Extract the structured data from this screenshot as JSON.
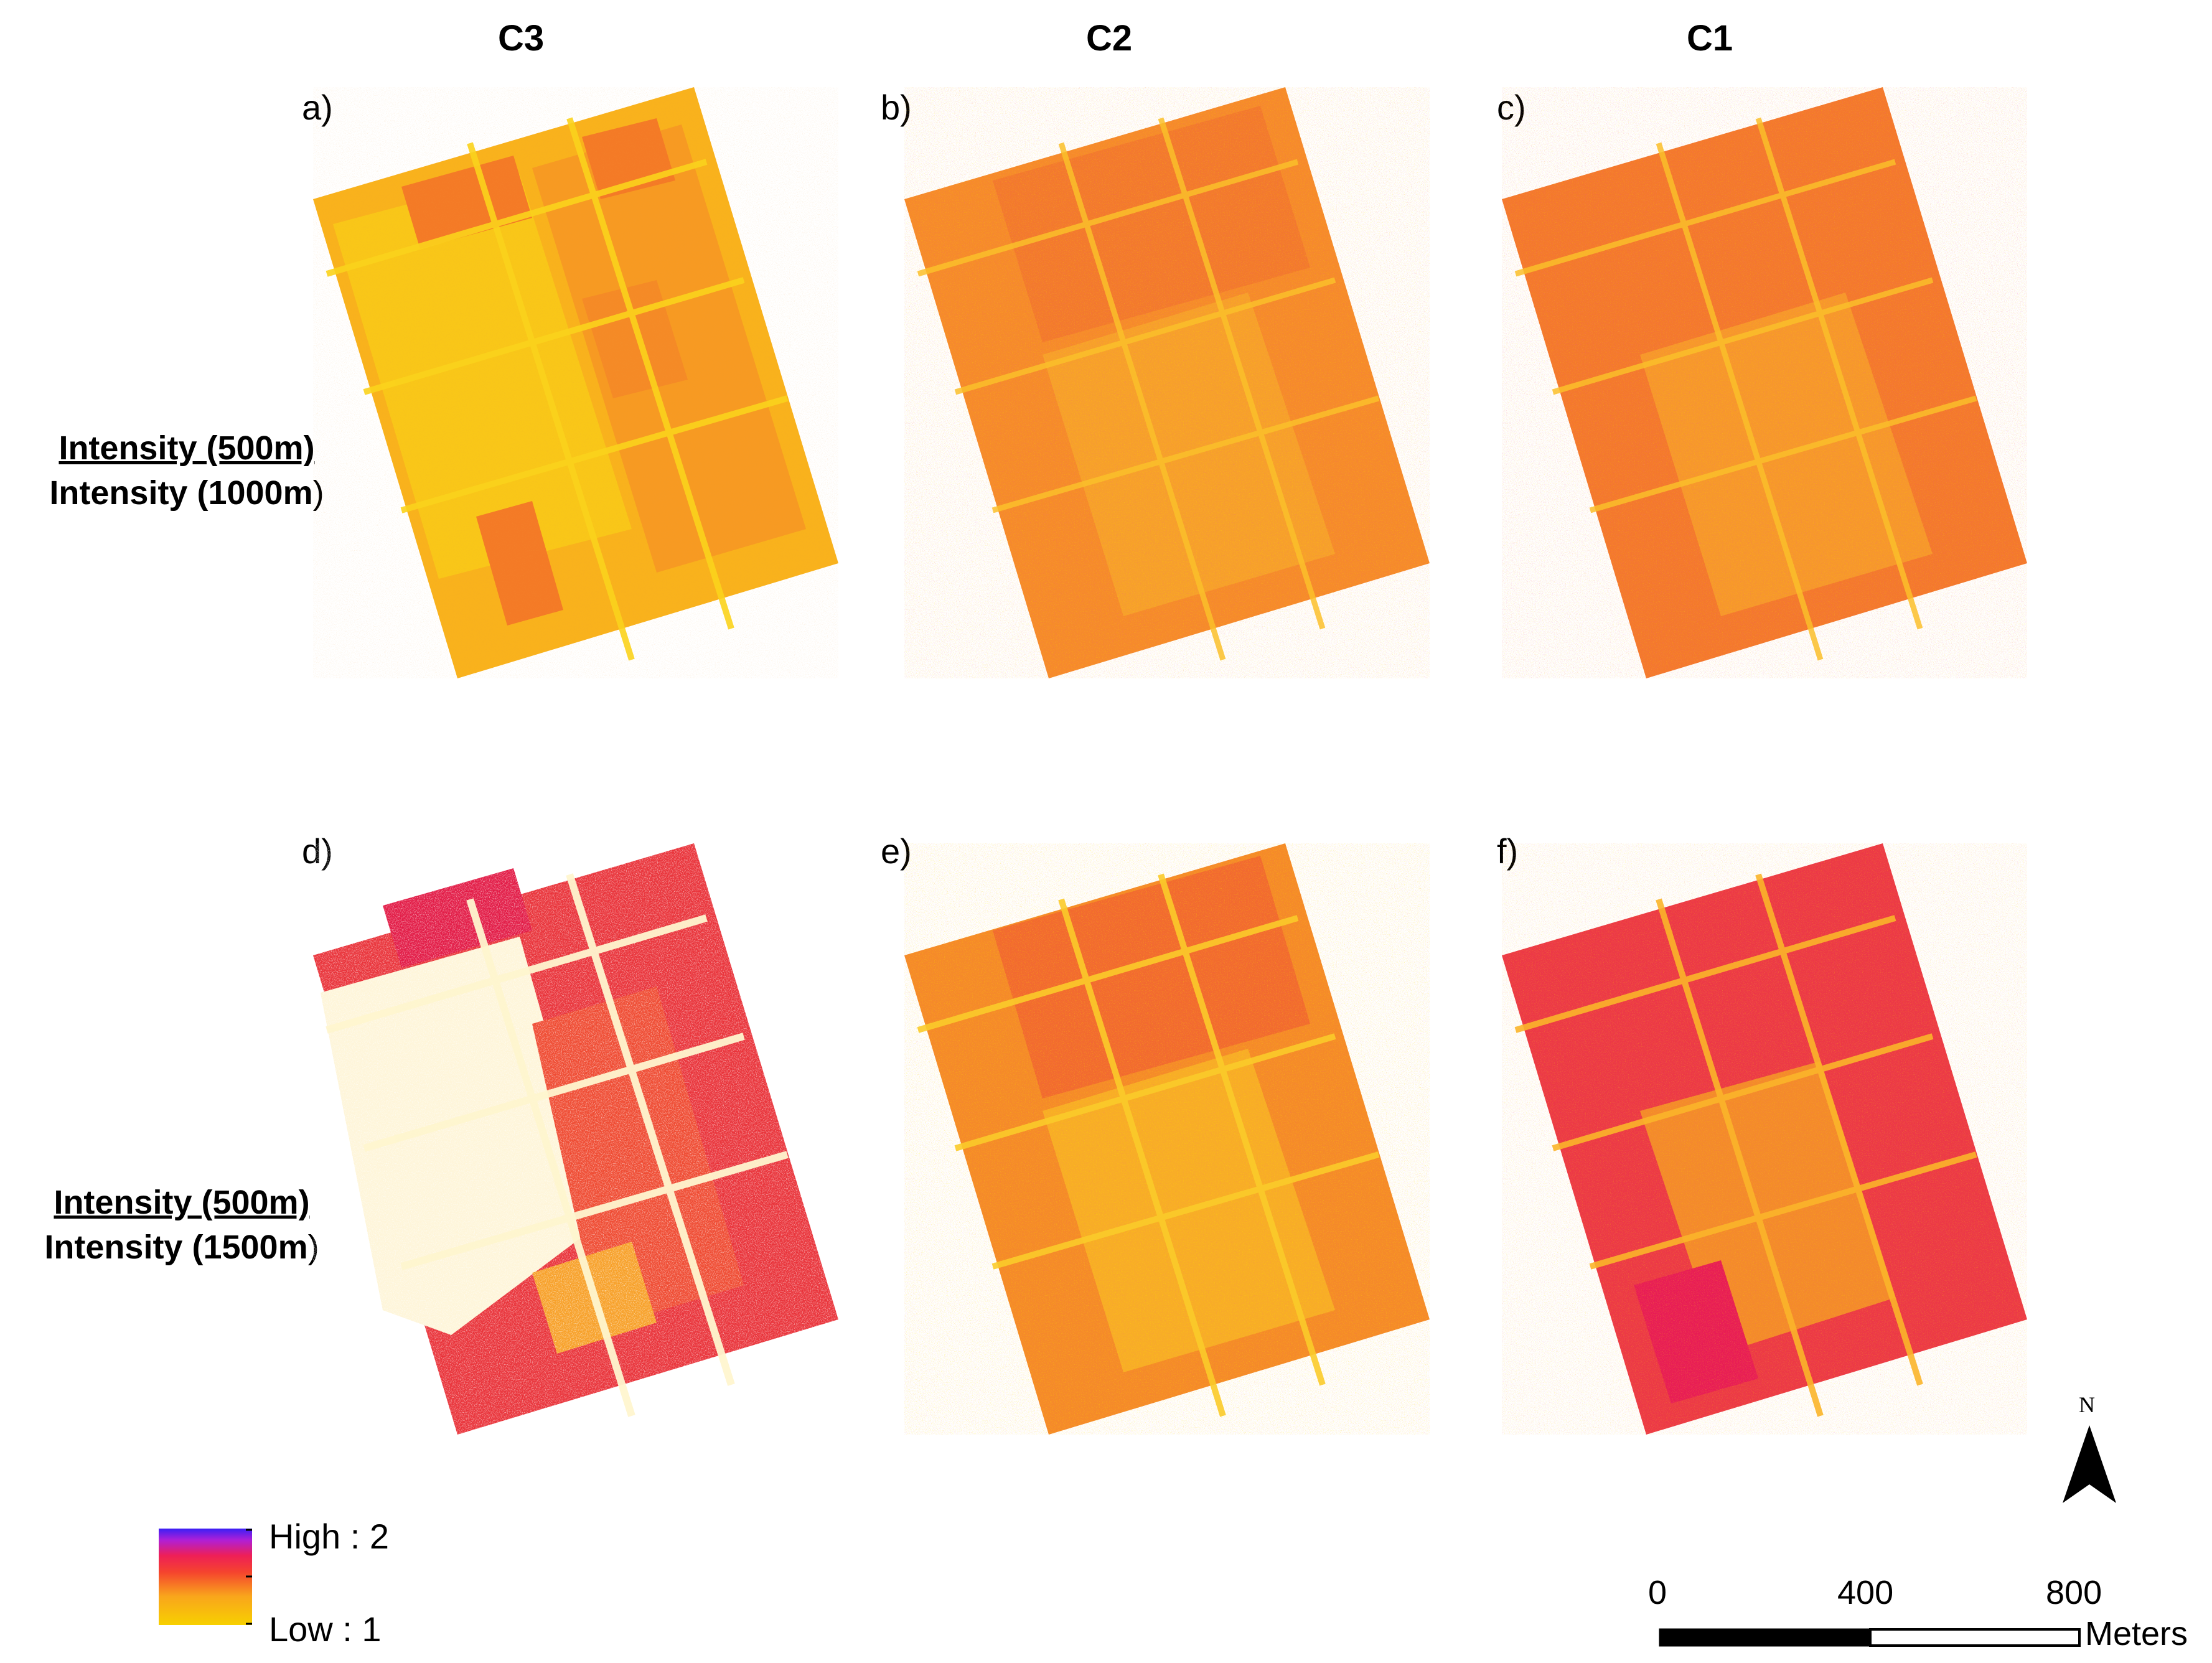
{
  "columns": [
    "C3",
    "C2",
    "C1"
  ],
  "panels": [
    "a)",
    "b)",
    "c)",
    "d)",
    "e)",
    "f)"
  ],
  "rows": [
    {
      "numerator": "Intensity (500m)",
      "denominator_main": "Intensity (1000m",
      "denominator_close": ")"
    },
    {
      "numerator": "Intensity (500m)",
      "denominator_main": "Intensity (1500m",
      "denominator_close": ")"
    }
  ],
  "legend": {
    "high": "High : 2",
    "low": "Low : 1",
    "colors": [
      "#f7d000",
      "#f9a51c",
      "#f5432e",
      "#ee1f57",
      "#b01fd6",
      "#3b1ff5"
    ]
  },
  "scale": {
    "ticks": [
      "0",
      "400",
      "800"
    ],
    "unit": "Meters"
  },
  "north": "N"
}
